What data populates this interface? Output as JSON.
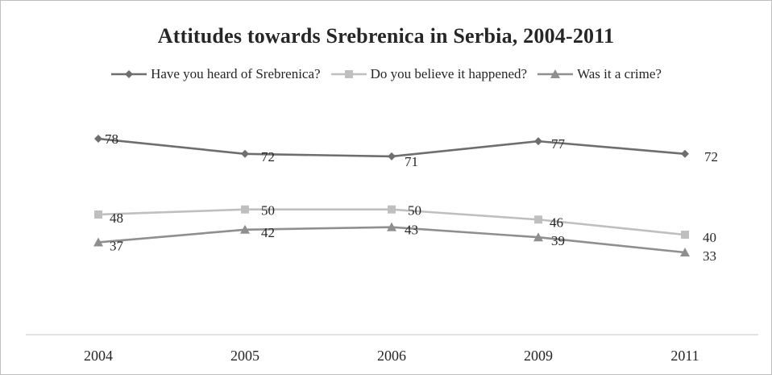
{
  "chart_data": {
    "type": "line",
    "title": "Attitudes towards Srebrenica in Serbia,  2004-2011",
    "categories": [
      "2004",
      "2005",
      "2006",
      "2009",
      "2011"
    ],
    "series": [
      {
        "name": "Have you heard of Srebrenica?",
        "values": [
          78,
          72,
          71,
          77,
          72
        ],
        "color": "#6e6e6e",
        "marker": "diamond"
      },
      {
        "name": "Do you believe it happened?",
        "values": [
          48,
          50,
          50,
          46,
          40
        ],
        "color": "#bfbfbf",
        "marker": "square"
      },
      {
        "name": "Was it a crime?",
        "values": [
          37,
          42,
          43,
          39,
          33
        ],
        "color": "#8f8f8f",
        "marker": "triangle"
      }
    ],
    "xlabel": "",
    "ylabel": "",
    "ylim": [
      0,
      100
    ],
    "grid": false,
    "legend": "top",
    "data_labels": true
  }
}
